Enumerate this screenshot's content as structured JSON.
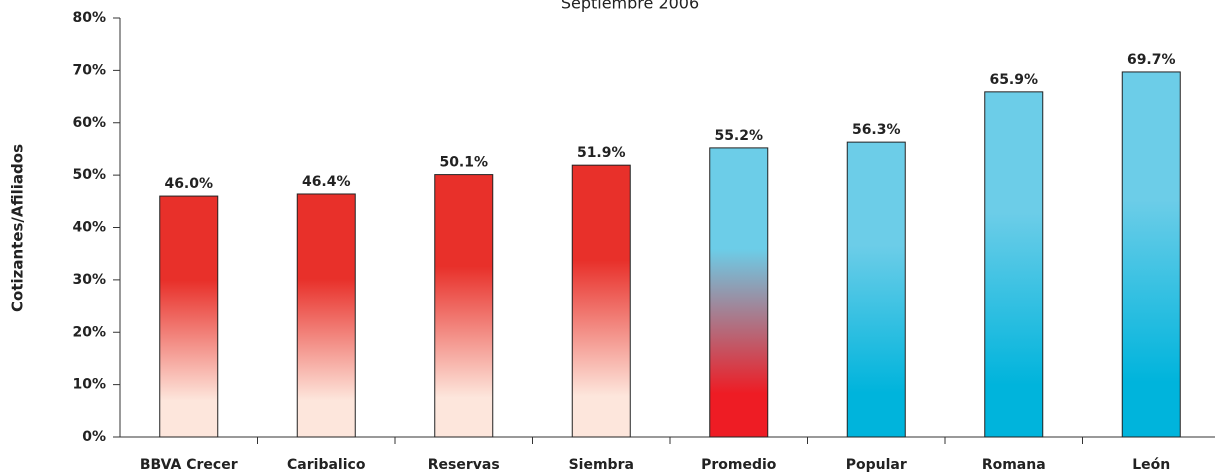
{
  "chart_data": {
    "type": "bar",
    "title": "Septiembre 2006",
    "y_label": "Cotizantes/Afiliados",
    "categories": [
      "BBVA Crecer",
      "Caribalico",
      "Reservas",
      "Siembra",
      "Promedio",
      "Popular",
      "Romana",
      "León"
    ],
    "values": [
      46.0,
      46.4,
      50.1,
      51.9,
      55.2,
      56.3,
      65.9,
      69.7
    ],
    "value_labels": [
      "46.0%",
      "46.4%",
      "50.1%",
      "51.9%",
      "55.2%",
      "56.3%",
      "65.9%",
      "69.7%"
    ],
    "colors": [
      [
        "#e8302a",
        "#fde6dc"
      ],
      [
        "#e8302a",
        "#fde6dc"
      ],
      [
        "#e8302a",
        "#fde6dc"
      ],
      [
        "#e8302a",
        "#fde6dc"
      ],
      [
        "#6ccde8",
        "#ee1c24"
      ],
      [
        "#6ccde8",
        "#00b4dc"
      ],
      [
        "#6ccde8",
        "#00b4dc"
      ],
      [
        "#6ccde8",
        "#00b4dc"
      ]
    ],
    "ylim": [
      0,
      80
    ],
    "yticks": [
      {
        "value": 0,
        "label": "0%"
      },
      {
        "value": 10,
        "label": "10%"
      },
      {
        "value": 20,
        "label": "20%"
      },
      {
        "value": 30,
        "label": "30%"
      },
      {
        "value": 40,
        "label": "40%"
      },
      {
        "value": 50,
        "label": "50%"
      },
      {
        "value": 60,
        "label": "60%"
      },
      {
        "value": 70,
        "label": "70%"
      },
      {
        "value": 80,
        "label": "80%"
      }
    ],
    "grid": false
  }
}
